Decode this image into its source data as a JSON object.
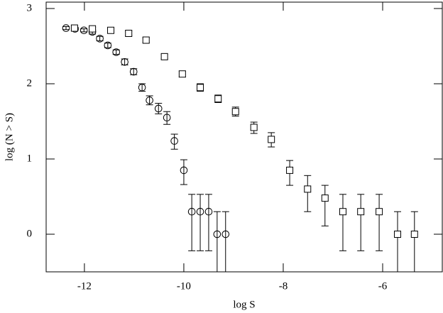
{
  "chart_data": {
    "type": "scatter",
    "xlabel": "log S",
    "ylabel": "log (N > S)",
    "xlim": [
      -12.77,
      -4.8
    ],
    "ylim": [
      -0.5,
      3.085
    ],
    "xticks": [
      -12,
      -10,
      -8,
      -6
    ],
    "yticks": [
      0,
      1,
      2,
      3
    ],
    "series": [
      {
        "marker": "circle",
        "color": "#000000",
        "x": [
          -12.37,
          -12.19,
          -12.01,
          -11.84,
          -11.69,
          -11.53,
          -11.36,
          -11.19,
          -11.01,
          -10.84,
          -10.69,
          -10.51,
          -10.34,
          -10.19,
          -10.0,
          -9.84,
          -9.67,
          -9.5,
          -9.33,
          -9.16
        ],
        "values": [
          2.74,
          2.73,
          2.71,
          2.69,
          2.6,
          2.51,
          2.42,
          2.29,
          2.16,
          1.95,
          1.78,
          1.67,
          1.55,
          1.24,
          0.85,
          0.3,
          0.3,
          0.3,
          0,
          0
        ],
        "yerr_minus": [
          0.02,
          0.02,
          0.02,
          0.03,
          0.03,
          0.03,
          0.03,
          0.04,
          0.04,
          0.05,
          0.06,
          0.07,
          0.09,
          0.11,
          0.19,
          0.52,
          0.52,
          0.52,
          0.6,
          0.6
        ],
        "yerr_plus": [
          0.02,
          0.02,
          0.02,
          0.03,
          0.03,
          0.03,
          0.03,
          0.04,
          0.04,
          0.05,
          0.06,
          0.07,
          0.08,
          0.09,
          0.14,
          0.23,
          0.23,
          0.23,
          0.3,
          0.3
        ]
      },
      {
        "marker": "square",
        "color": "#000000",
        "x": [
          -12.2,
          -11.84,
          -11.47,
          -11.11,
          -10.76,
          -10.39,
          -10.03,
          -9.67,
          -9.31,
          -8.96,
          -8.59,
          -8.24,
          -7.87,
          -7.51,
          -7.16,
          -6.8,
          -6.44,
          -6.07,
          -5.7,
          -5.36
        ],
        "values": [
          2.74,
          2.73,
          2.71,
          2.67,
          2.58,
          2.36,
          2.13,
          1.95,
          1.8,
          1.63,
          1.42,
          1.26,
          0.85,
          0.6,
          0.48,
          0.3,
          0.3,
          0.3,
          0,
          0
        ],
        "yerr_minus": [
          0.02,
          0.02,
          0.03,
          0.03,
          0.03,
          0.03,
          0.04,
          0.05,
          0.05,
          0.06,
          0.08,
          0.1,
          0.2,
          0.3,
          0.37,
          0.52,
          0.52,
          0.52,
          0.6,
          0.6
        ],
        "yerr_plus": [
          0.02,
          0.02,
          0.03,
          0.03,
          0.03,
          0.03,
          0.04,
          0.05,
          0.05,
          0.06,
          0.07,
          0.09,
          0.13,
          0.18,
          0.17,
          0.23,
          0.23,
          0.23,
          0.3,
          0.3
        ]
      }
    ]
  }
}
